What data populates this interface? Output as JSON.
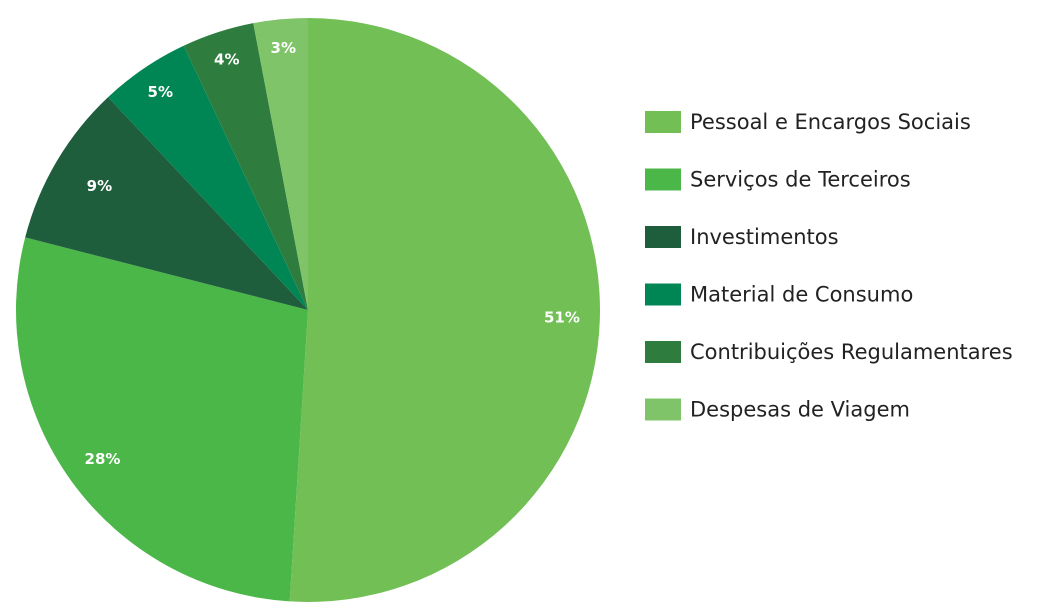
{
  "chart_data": {
    "type": "pie",
    "categories": [
      "Pessoal e Encargos Sociais",
      "Serviços de Terceiros",
      "Investimentos",
      "Material de Consumo",
      "Contribuições Regulamentares",
      "Despesas de Viagem"
    ],
    "values": [
      51,
      28,
      9,
      5,
      4,
      3
    ],
    "value_labels": [
      "51%",
      "28%",
      "9%",
      "5%",
      "4%",
      "3%"
    ],
    "colors": [
      "#72bf56",
      "#4bb748",
      "#1e5e3c",
      "#008554",
      "#2e7d3f",
      "#80c46a"
    ],
    "legend": "right"
  }
}
